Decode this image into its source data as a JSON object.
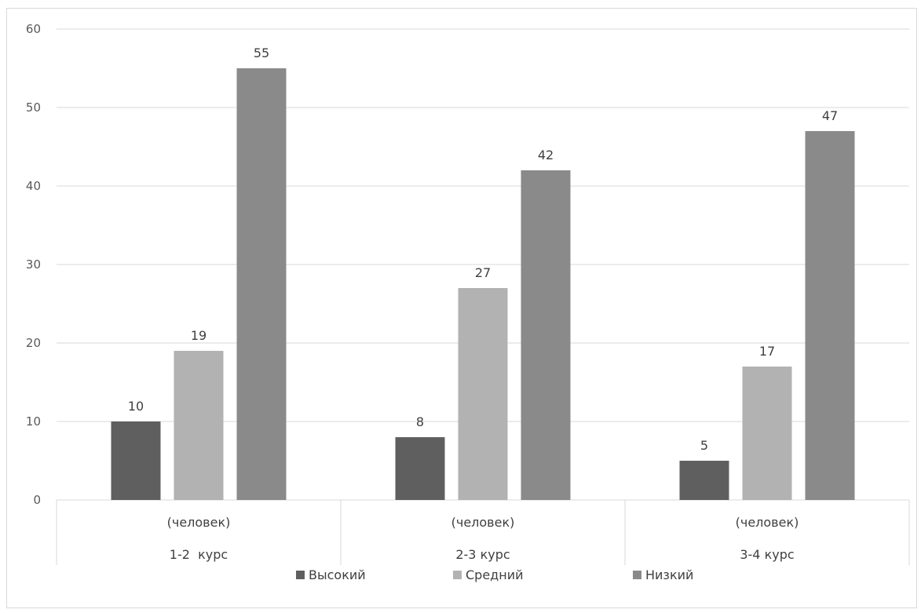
{
  "chart_data": {
    "type": "bar",
    "title": "",
    "xlabel": "",
    "ylabel": "",
    "ylim": [
      0,
      60
    ],
    "yticks": [
      0,
      10,
      20,
      30,
      40,
      50,
      60
    ],
    "grid": true,
    "legend_position": "bottom",
    "categories": [
      {
        "unit": "(человек)",
        "label": "1-2  курс"
      },
      {
        "unit": "(человек)",
        "label": "2-3 курс"
      },
      {
        "unit": "(человек)",
        "label": "3-4 курс"
      }
    ],
    "series": [
      {
        "name": "Высокий",
        "color": "#5f5f5f",
        "values": [
          10,
          8,
          5
        ]
      },
      {
        "name": "Средний",
        "color": "#b2b2b2",
        "values": [
          19,
          27,
          17
        ]
      },
      {
        "name": "Низкий",
        "color": "#8a8a8a",
        "values": [
          55,
          42,
          47
        ]
      }
    ]
  }
}
